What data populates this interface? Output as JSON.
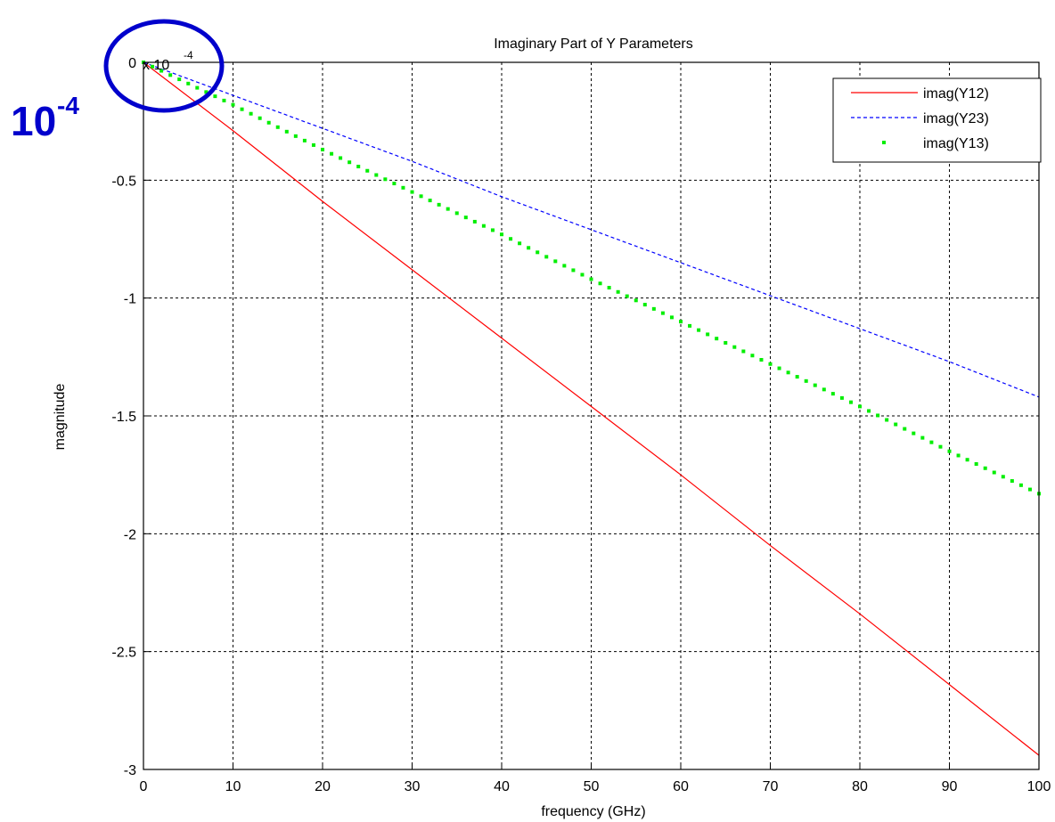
{
  "chart_data": {
    "type": "line",
    "title": "Imaginary Part of Y Parameters",
    "xlabel": "frequency (GHz)",
    "ylabel": "magnitude",
    "xlim": [
      0,
      100
    ],
    "ylim": [
      -3,
      0
    ],
    "x_ticks": [
      0,
      10,
      20,
      30,
      40,
      50,
      60,
      70,
      80,
      90,
      100
    ],
    "y_ticks": [
      0,
      -0.5,
      -1,
      -1.5,
      -2,
      -2.5,
      -3
    ],
    "x_tick_labels": [
      "0",
      "10",
      "20",
      "30",
      "40",
      "50",
      "60",
      "70",
      "80",
      "90",
      "100"
    ],
    "y_tick_labels": [
      "0",
      "-0.5",
      "-1",
      "-1.5",
      "-2",
      "-2.5",
      "-3"
    ],
    "y_multiplier": {
      "base": "x 10",
      "exponent": "-4"
    },
    "grid": true,
    "legend_position": "top-right",
    "x": [
      0,
      10,
      20,
      30,
      40,
      50,
      60,
      70,
      80,
      90,
      100
    ],
    "series": [
      {
        "name": "imag(Y12)",
        "style": "solid",
        "color": "#ff0000",
        "values": [
          0,
          -0.29,
          -0.59,
          -0.88,
          -1.17,
          -1.46,
          -1.75,
          -2.05,
          -2.34,
          -2.64,
          -2.94
        ]
      },
      {
        "name": "imag(Y23)",
        "style": "dashed",
        "color": "#0000ff",
        "values": [
          0,
          -0.14,
          -0.28,
          -0.42,
          -0.57,
          -0.71,
          -0.85,
          -0.99,
          -1.13,
          -1.27,
          -1.42
        ]
      },
      {
        "name": "imag(Y13)",
        "style": "dotted",
        "color": "#00ee00",
        "values": [
          0,
          -0.18,
          -0.37,
          -0.55,
          -0.73,
          -0.92,
          -1.1,
          -1.28,
          -1.46,
          -1.65,
          -1.83
        ]
      }
    ]
  },
  "annotation": {
    "big_text": "10",
    "big_sup": "-4",
    "circle_color": "#0000cc"
  }
}
